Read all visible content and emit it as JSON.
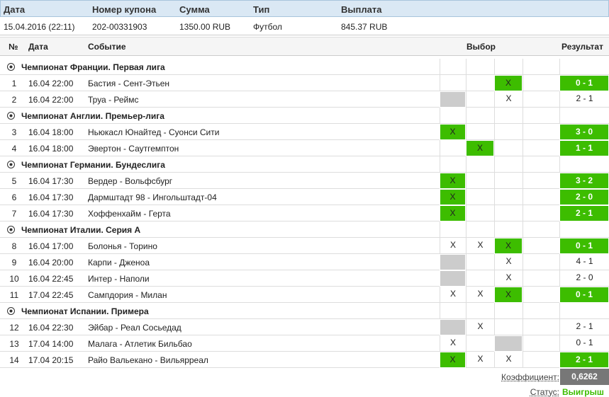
{
  "coupon": {
    "headers": [
      "Дата",
      "Номер купона",
      "Сумма",
      "Тип",
      "Выплата"
    ],
    "values": [
      "15.04.2016 (22:11)",
      "202-00331903",
      "1350.00 RUB",
      "Футбол",
      "845.37 RUB"
    ]
  },
  "table": {
    "headers": [
      "№",
      "Дата",
      "Событие",
      "Выбор",
      "Результат"
    ],
    "colors": {
      "win": "#3dbd00",
      "blocked": "#cccccc"
    },
    "leagues": [
      {
        "name": "Чемпионат Франции. Первая лига",
        "matches": [
          {
            "no": "1",
            "date": "16.04 22:00",
            "event": "Бастия - Сент-Этьен",
            "picks": [
              null,
              null,
              {
                "mark": "X",
                "highlight": "win"
              }
            ],
            "result": {
              "score": "0 - 1",
              "win": true
            }
          },
          {
            "no": "2",
            "date": "16.04 22:00",
            "event": "Труа - Реймс",
            "picks": [
              {
                "highlight": "blocked"
              },
              null,
              {
                "mark": "X"
              }
            ],
            "result": {
              "score": "2 - 1",
              "win": false
            }
          }
        ]
      },
      {
        "name": "Чемпионат Англии. Премьер-лига",
        "matches": [
          {
            "no": "3",
            "date": "16.04 18:00",
            "event": "Ньюкасл Юнайтед - Суонси Сити",
            "picks": [
              {
                "mark": "X",
                "highlight": "win"
              },
              null,
              null
            ],
            "result": {
              "score": "3 - 0",
              "win": true
            }
          },
          {
            "no": "4",
            "date": "16.04 18:00",
            "event": "Эвертон - Саутгемптон",
            "picks": [
              null,
              {
                "mark": "X",
                "highlight": "win"
              },
              null
            ],
            "result": {
              "score": "1 - 1",
              "win": true
            }
          }
        ]
      },
      {
        "name": "Чемпионат Германии. Бундеслига",
        "matches": [
          {
            "no": "5",
            "date": "16.04 17:30",
            "event": "Вердер - Вольфсбург",
            "picks": [
              {
                "mark": "X",
                "highlight": "win"
              },
              null,
              null
            ],
            "result": {
              "score": "3 - 2",
              "win": true
            }
          },
          {
            "no": "6",
            "date": "16.04 17:30",
            "event": "Дармштадт 98 - Ингольштадт-04",
            "picks": [
              {
                "mark": "X",
                "highlight": "win"
              },
              null,
              null
            ],
            "result": {
              "score": "2 - 0",
              "win": true
            }
          },
          {
            "no": "7",
            "date": "16.04 17:30",
            "event": "Хоффенхайм - Герта",
            "picks": [
              {
                "mark": "X",
                "highlight": "win"
              },
              null,
              null
            ],
            "result": {
              "score": "2 - 1",
              "win": true
            }
          }
        ]
      },
      {
        "name": "Чемпионат Италии. Серия А",
        "matches": [
          {
            "no": "8",
            "date": "16.04 17:00",
            "event": "Болонья - Торино",
            "picks": [
              {
                "mark": "X"
              },
              {
                "mark": "X"
              },
              {
                "mark": "X",
                "highlight": "win"
              }
            ],
            "result": {
              "score": "0 - 1",
              "win": true
            }
          },
          {
            "no": "9",
            "date": "16.04 20:00",
            "event": "Карпи - Дженоа",
            "picks": [
              {
                "highlight": "blocked"
              },
              null,
              {
                "mark": "X"
              }
            ],
            "result": {
              "score": "4 - 1",
              "win": false
            }
          },
          {
            "no": "10",
            "date": "16.04 22:45",
            "event": "Интер - Наполи",
            "picks": [
              {
                "highlight": "blocked"
              },
              null,
              {
                "mark": "X"
              }
            ],
            "result": {
              "score": "2 - 0",
              "win": false
            }
          },
          {
            "no": "11",
            "date": "17.04 22:45",
            "event": "Сампдория - Милан",
            "picks": [
              {
                "mark": "X"
              },
              {
                "mark": "X"
              },
              {
                "mark": "X",
                "highlight": "win"
              }
            ],
            "result": {
              "score": "0 - 1",
              "win": true
            }
          }
        ]
      },
      {
        "name": "Чемпионат Испании. Примера",
        "matches": [
          {
            "no": "12",
            "date": "16.04 22:30",
            "event": "Эйбар - Реал Сосьедад",
            "picks": [
              {
                "highlight": "blocked"
              },
              {
                "mark": "X"
              },
              null
            ],
            "result": {
              "score": "2 - 1",
              "win": false
            }
          },
          {
            "no": "13",
            "date": "17.04 14:00",
            "event": "Малага - Атлетик Бильбао",
            "picks": [
              {
                "mark": "X"
              },
              null,
              {
                "highlight": "blocked"
              }
            ],
            "result": {
              "score": "0 - 1",
              "win": false
            }
          },
          {
            "no": "14",
            "date": "17.04 20:15",
            "event": "Райо Вальекано - Вильярреал",
            "picks": [
              {
                "mark": "X",
                "highlight": "win"
              },
              {
                "mark": "X"
              },
              {
                "mark": "X"
              }
            ],
            "result": {
              "score": "2 - 1",
              "win": true
            }
          }
        ]
      }
    ]
  },
  "footer": {
    "coefficient_label": "Коэффициент:",
    "coefficient": "0,6262",
    "status_label": "Статус:",
    "status": "Выигрыш"
  }
}
